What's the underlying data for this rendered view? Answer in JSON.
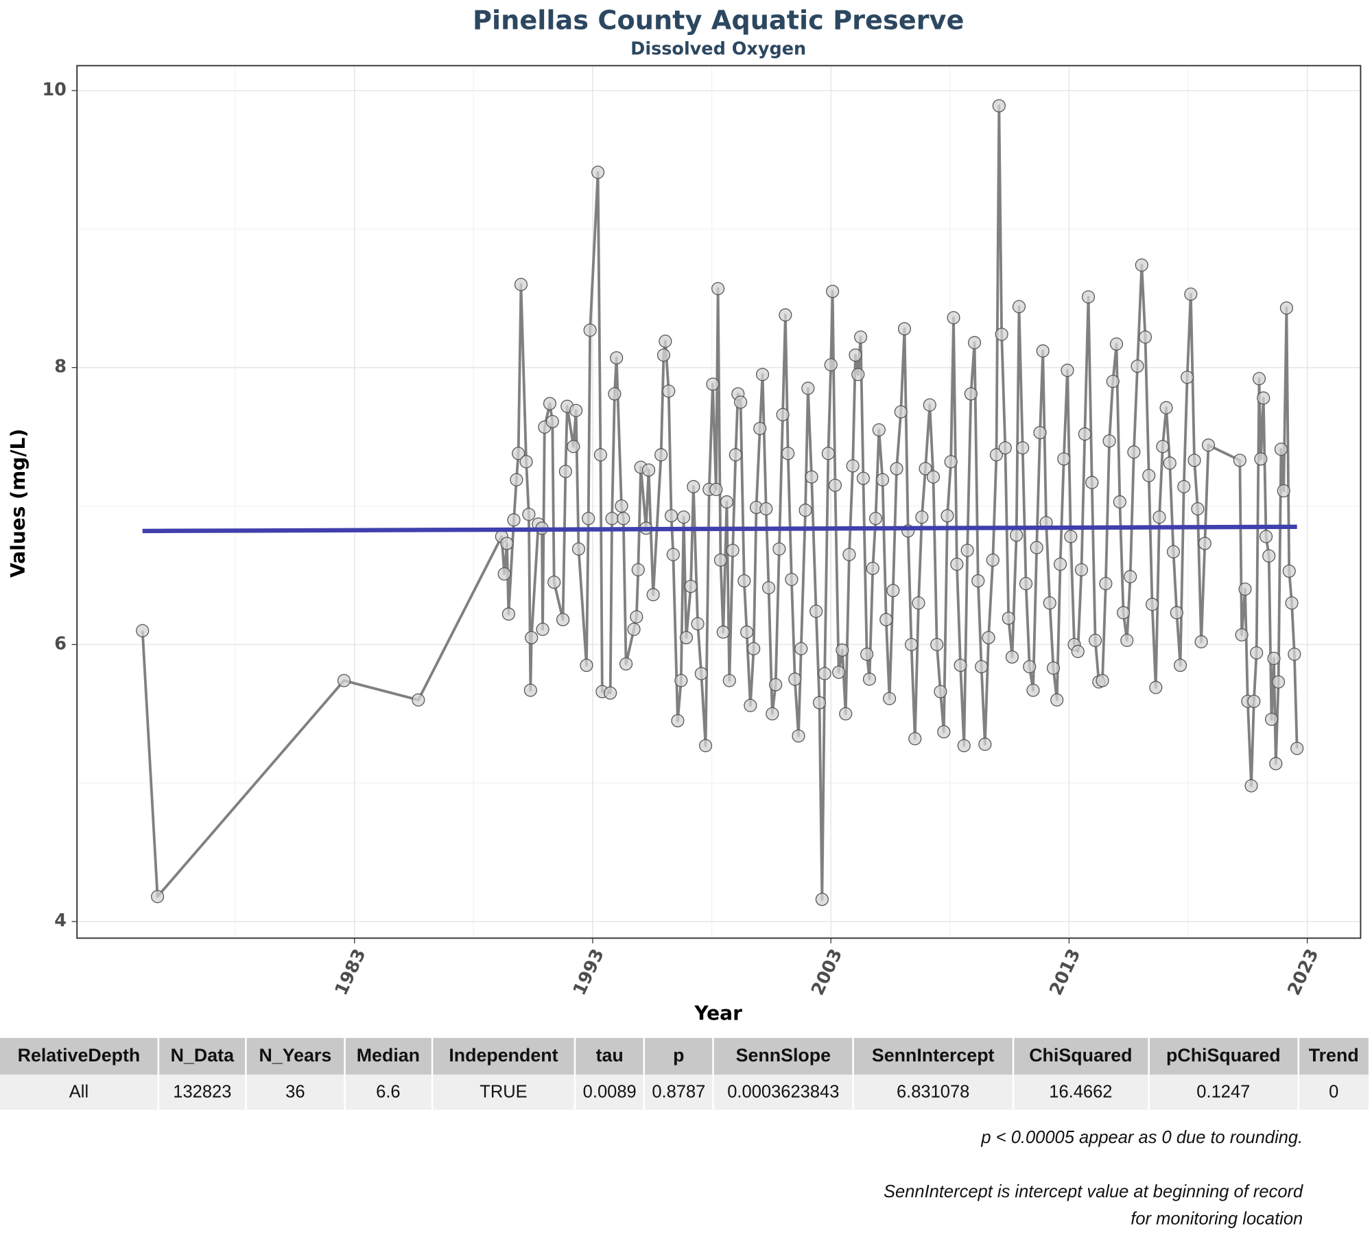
{
  "chart_data": {
    "type": "line",
    "title": "Pinellas County Aquatic Preserve",
    "subtitle": "Dissolved Oxygen",
    "x_label": "Year",
    "y_label": "Values (mg/L)",
    "xlim": [
      1971.35,
      2025.24
    ],
    "ylim": [
      3.88,
      10.18
    ],
    "xticks": [
      1983,
      1993,
      2003,
      2013,
      2023
    ],
    "yticks": [
      4,
      6,
      8,
      10
    ],
    "grid": true,
    "series": [
      {
        "color": "#808080",
        "marker_color": "#d3d3d3",
        "x": [
          1974.1,
          1974.73,
          1982.56,
          1985.68,
          1989.18,
          1989.29,
          1989.4,
          1989.47,
          1989.69,
          1989.8,
          1989.88,
          1989.99,
          1990.21,
          1990.32,
          1990.39,
          1990.43,
          1990.72,
          1990.87,
          1990.9,
          1990.98,
          1991.2,
          1991.31,
          1991.38,
          1991.75,
          1991.86,
          1991.93,
          1992.19,
          1992.3,
          1992.41,
          1992.74,
          1992.82,
          1992.89,
          1993.22,
          1993.33,
          1993.4,
          1993.74,
          1993.81,
          1993.92,
          1994.0,
          1994.21,
          1994.29,
          1994.4,
          1994.73,
          1994.84,
          1994.91,
          1995.02,
          1995.24,
          1995.35,
          1995.54,
          1995.87,
          1995.98,
          1996.05,
          1996.19,
          1996.3,
          1996.38,
          1996.57,
          1996.71,
          1996.82,
          1996.93,
          1997.12,
          1997.23,
          1997.41,
          1997.56,
          1997.74,
          1997.89,
          1998.04,
          1998.18,
          1998.26,
          1998.37,
          1998.48,
          1998.63,
          1998.74,
          1998.88,
          1999.0,
          1999.1,
          1999.21,
          1999.36,
          1999.47,
          1999.62,
          1999.76,
          1999.87,
          2000.02,
          2000.13,
          2000.28,
          2000.39,
          2000.54,
          2000.68,
          2000.83,
          2000.98,
          2001.09,
          2001.2,
          2001.35,
          2001.49,
          2001.64,
          2001.75,
          2001.93,
          2002.04,
          2002.19,
          2002.38,
          2002.52,
          2002.63,
          2002.74,
          2002.89,
          2003.0,
          2003.07,
          2003.18,
          2003.33,
          2003.48,
          2003.62,
          2003.77,
          2003.92,
          2004.03,
          2004.14,
          2004.25,
          2004.36,
          2004.51,
          2004.62,
          2004.76,
          2004.88,
          2005.02,
          2005.17,
          2005.32,
          2005.46,
          2005.61,
          2005.76,
          2005.94,
          2006.09,
          2006.24,
          2006.38,
          2006.53,
          2006.68,
          2006.82,
          2006.97,
          2007.15,
          2007.3,
          2007.45,
          2007.6,
          2007.74,
          2007.89,
          2008.04,
          2008.15,
          2008.29,
          2008.44,
          2008.59,
          2008.73,
          2008.88,
          2009.03,
          2009.18,
          2009.32,
          2009.47,
          2009.62,
          2009.8,
          2009.95,
          2010.06,
          2010.17,
          2010.32,
          2010.46,
          2010.61,
          2010.79,
          2010.9,
          2011.05,
          2011.19,
          2011.34,
          2011.49,
          2011.64,
          2011.78,
          2011.9,
          2012.04,
          2012.19,
          2012.34,
          2012.49,
          2012.63,
          2012.78,
          2012.93,
          2013.07,
          2013.22,
          2013.37,
          2013.52,
          2013.66,
          2013.81,
          2013.96,
          2014.1,
          2014.25,
          2014.4,
          2014.54,
          2014.69,
          2014.84,
          2014.99,
          2015.13,
          2015.28,
          2015.43,
          2015.57,
          2015.72,
          2015.87,
          2016.05,
          2016.2,
          2016.35,
          2016.49,
          2016.64,
          2016.79,
          2016.93,
          2017.08,
          2017.23,
          2017.38,
          2017.52,
          2017.67,
          2017.82,
          2017.96,
          2018.11,
          2018.26,
          2018.4,
          2018.55,
          2018.7,
          2018.85,
          2020.17,
          2020.25,
          2020.39,
          2020.5,
          2020.65,
          2020.76,
          2020.87,
          2020.98,
          2021.05,
          2021.16,
          2021.27,
          2021.39,
          2021.5,
          2021.6,
          2021.68,
          2021.79,
          2021.9,
          2022.01,
          2022.13,
          2022.24,
          2022.35,
          2022.46,
          2022.57
        ],
        "values": [
          6.1,
          4.18,
          5.74,
          5.6,
          6.78,
          6.51,
          6.73,
          6.22,
          6.9,
          7.19,
          7.38,
          8.6,
          7.32,
          6.94,
          5.67,
          6.05,
          6.87,
          6.84,
          6.11,
          7.57,
          7.74,
          7.61,
          6.45,
          6.18,
          7.25,
          7.72,
          7.43,
          7.69,
          6.69,
          5.85,
          6.91,
          8.27,
          9.41,
          7.37,
          5.66,
          5.65,
          6.91,
          7.81,
          8.07,
          7.0,
          6.91,
          5.86,
          6.11,
          6.2,
          6.54,
          7.28,
          6.84,
          7.26,
          6.36,
          7.37,
          8.09,
          8.19,
          7.83,
          6.93,
          6.65,
          5.45,
          5.74,
          6.92,
          6.05,
          6.42,
          7.14,
          6.15,
          5.79,
          5.27,
          7.12,
          7.88,
          7.12,
          8.57,
          6.61,
          6.09,
          7.03,
          5.74,
          6.68,
          7.37,
          7.81,
          7.75,
          6.46,
          6.09,
          5.56,
          5.97,
          6.99,
          7.56,
          7.95,
          6.98,
          6.41,
          5.5,
          5.71,
          6.69,
          7.66,
          8.38,
          7.38,
          6.47,
          5.75,
          5.34,
          5.97,
          6.97,
          7.85,
          7.21,
          6.24,
          5.58,
          4.16,
          5.79,
          7.38,
          8.02,
          8.55,
          7.15,
          5.8,
          5.96,
          5.5,
          6.65,
          7.29,
          8.09,
          7.95,
          8.22,
          7.2,
          5.93,
          5.75,
          6.55,
          6.91,
          7.55,
          7.19,
          6.18,
          5.61,
          6.39,
          7.27,
          7.68,
          8.28,
          6.82,
          6.0,
          5.32,
          6.3,
          6.92,
          7.27,
          7.73,
          7.21,
          6.0,
          5.66,
          5.37,
          6.93,
          7.32,
          8.36,
          6.58,
          5.85,
          5.27,
          6.68,
          7.81,
          8.18,
          6.46,
          5.84,
          5.28,
          6.05,
          6.61,
          7.37,
          9.89,
          8.24,
          7.42,
          6.19,
          5.91,
          6.79,
          8.44,
          7.42,
          6.44,
          5.84,
          5.67,
          6.7,
          7.53,
          8.12,
          6.88,
          6.3,
          5.83,
          5.6,
          6.58,
          7.34,
          7.98,
          6.78,
          6.0,
          5.95,
          6.54,
          7.52,
          8.51,
          7.17,
          6.03,
          5.73,
          5.74,
          6.44,
          7.47,
          7.9,
          8.17,
          7.03,
          6.23,
          6.03,
          6.49,
          7.39,
          8.01,
          8.74,
          8.22,
          7.22,
          6.29,
          5.69,
          6.92,
          7.43,
          7.71,
          7.31,
          6.67,
          6.23,
          5.85,
          7.14,
          7.93,
          8.53,
          7.33,
          6.98,
          6.02,
          6.73,
          7.44,
          7.33,
          6.07,
          6.4,
          5.59,
          4.98,
          5.59,
          5.94,
          7.92,
          7.34,
          7.78,
          6.78,
          6.64,
          5.46,
          5.9,
          5.14,
          5.73,
          7.41,
          7.11,
          8.43,
          6.53,
          6.3,
          5.93,
          5.25
        ]
      }
    ],
    "trend": {
      "color": "#3f3fad",
      "x": [
        1974.1,
        2022.57
      ],
      "values": [
        6.82,
        6.85
      ]
    }
  },
  "table": {
    "columns": [
      "RelativeDepth",
      "N_Data",
      "N_Years",
      "Median",
      "Independent",
      "tau",
      "p",
      "SennSlope",
      "SennIntercept",
      "ChiSquared",
      "pChiSquared",
      "Trend"
    ],
    "rows": [
      [
        "All",
        132823,
        36,
        6.6,
        "TRUE",
        0.0089,
        0.8787,
        0.0003623843,
        6.831078,
        16.4662,
        0.1247,
        0
      ]
    ]
  },
  "notes": [
    "p < 0.00005 appear as 0 due to rounding.",
    "SennIntercept is intercept value at beginning of record for monitoring location"
  ]
}
